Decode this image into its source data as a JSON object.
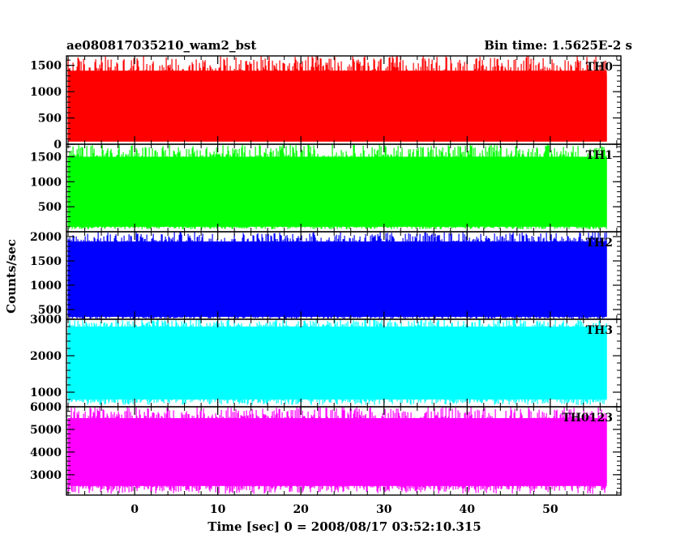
{
  "chart_data": {
    "type": "line",
    "title": "ae080817035210_wam2_bst",
    "subtitle": "Bin time: 1.5625E-2 s",
    "xlabel": "Time [sec] 0 = 2008/08/17 03:52:10.315",
    "ylabel": "Counts/sec",
    "xlim": [
      -8.2,
      58.5
    ],
    "x_ticks": [
      0,
      10,
      20,
      30,
      40,
      50
    ],
    "x_tick_labels": [
      "0",
      "10",
      "20",
      "30",
      "40",
      "50"
    ],
    "x_data_range": [
      -8,
      56.8
    ],
    "bin_time_s": 0.015625,
    "panels": [
      {
        "name": "TH0",
        "color": "#ff0000",
        "ylim": [
          0,
          1680
        ],
        "y_ticks": [
          0,
          500,
          1000,
          1500
        ],
        "y_tick_labels": [
          "0",
          "500",
          "1000",
          "1500"
        ],
        "mean": 640,
        "typical_min": 50,
        "typical_max": 1400,
        "envelope_low": 60,
        "envelope_high": 1680
      },
      {
        "name": "TH1",
        "color": "#00ff00",
        "ylim": [
          0,
          1750
        ],
        "y_ticks": [
          500,
          1000,
          1500
        ],
        "y_tick_labels": [
          "500",
          "1000",
          "1500"
        ],
        "mean": 720,
        "typical_min": 100,
        "typical_max": 1500,
        "envelope_low": 50,
        "envelope_high": 1750
      },
      {
        "name": "TH2",
        "color": "#0000ff",
        "ylim": [
          300,
          2100
        ],
        "y_ticks": [
          500,
          1000,
          1500,
          2000
        ],
        "y_tick_labels": [
          "500",
          "1000",
          "1500",
          "2000"
        ],
        "mean": 1050,
        "typical_min": 350,
        "typical_max": 1900,
        "envelope_low": 300,
        "envelope_high": 2100
      },
      {
        "name": "TH3",
        "color": "#00ffff",
        "ylim": [
          600,
          3000
        ],
        "y_ticks": [
          1000,
          2000,
          3000
        ],
        "y_tick_labels": [
          "1000",
          "2000",
          "3000"
        ],
        "mean": 1750,
        "typical_min": 800,
        "typical_max": 2800,
        "envelope_low": 650,
        "envelope_high": 3000
      },
      {
        "name": "TH0123",
        "color": "#ff00ff",
        "ylim": [
          2100,
          6000
        ],
        "y_ticks": [
          3000,
          4000,
          5000,
          6000
        ],
        "y_tick_labels": [
          "3000",
          "4000",
          "5000",
          "6000"
        ],
        "mean": 3950,
        "typical_min": 2500,
        "typical_max": 5500,
        "envelope_low": 2150,
        "envelope_high": 6000
      }
    ]
  }
}
